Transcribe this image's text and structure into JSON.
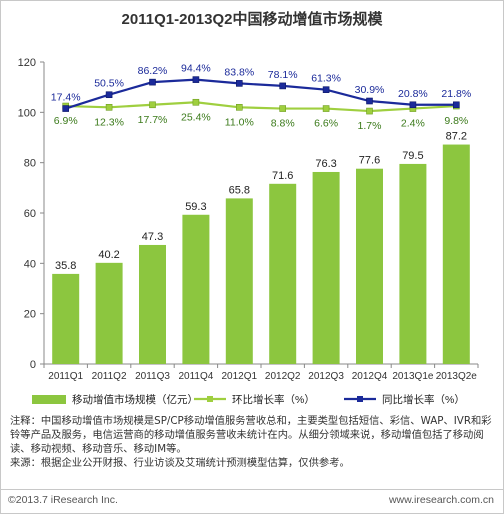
{
  "chart_data": {
    "type": "bar",
    "title": "2011Q1-2013Q2中国移动增值市场规模",
    "categories": [
      "2011Q1",
      "2011Q2",
      "2011Q3",
      "2011Q4",
      "2012Q1",
      "2012Q2",
      "2012Q3",
      "2012Q4",
      "2013Q1e",
      "2013Q2e"
    ],
    "ylim": [
      0,
      120
    ],
    "yticks": [
      "0",
      "20",
      "40",
      "60",
      "80",
      "100",
      "120"
    ],
    "grid": false,
    "legend_position": "bottom",
    "series": [
      {
        "name": "移动增值市场规模（亿元）",
        "kind": "bar",
        "color": "#8cc63f",
        "values": [
          35.8,
          40.2,
          47.3,
          59.3,
          65.8,
          71.6,
          76.3,
          77.6,
          79.5,
          87.2
        ],
        "labels": [
          "35.8",
          "40.2",
          "47.3",
          "59.3",
          "65.8",
          "71.6",
          "76.3",
          "77.6",
          "79.5",
          "87.2"
        ]
      },
      {
        "name": "环比增长率（%）",
        "kind": "line",
        "color": "#9fcf3f",
        "position": [
          102.5,
          102.0,
          103.0,
          104.0,
          102.0,
          101.5,
          101.5,
          100.5,
          101.5,
          102.5
        ],
        "labels": [
          "6.9%",
          "12.3%",
          "17.7%",
          "25.4%",
          "11.0%",
          "8.8%",
          "6.6%",
          "1.7%",
          "2.4%",
          "9.8%"
        ]
      },
      {
        "name": "同比增长率（%）",
        "kind": "line",
        "color": "#1b2a9a",
        "position": [
          101.5,
          107.0,
          112.0,
          113.0,
          111.5,
          110.5,
          109.0,
          104.5,
          103.0,
          103.0
        ],
        "labels": [
          "17.4%",
          "50.5%",
          "86.2%",
          "94.4%",
          "83.8%",
          "78.1%",
          "61.3%",
          "30.9%",
          "20.8%",
          "21.8%"
        ]
      }
    ]
  },
  "notes": {
    "note": "注释：中国移动增值市场规模是SP/CP移动增值服务营收总和，主要类型包括短信、彩信、WAP、IVR和彩铃等产品及服务，电信运营商的移动增值服务营收未统计在内。从细分领域来说，移动增值包括了移动阅读、移动视频、移动音乐、移动IM等。",
    "source": "来源：根据企业公开财报、行业访谈及艾瑞统计预测模型估算，仅供参考。"
  },
  "footer": {
    "copyright": "©2013.7 iResearch Inc.",
    "website": "www.iresearch.com.cn"
  }
}
